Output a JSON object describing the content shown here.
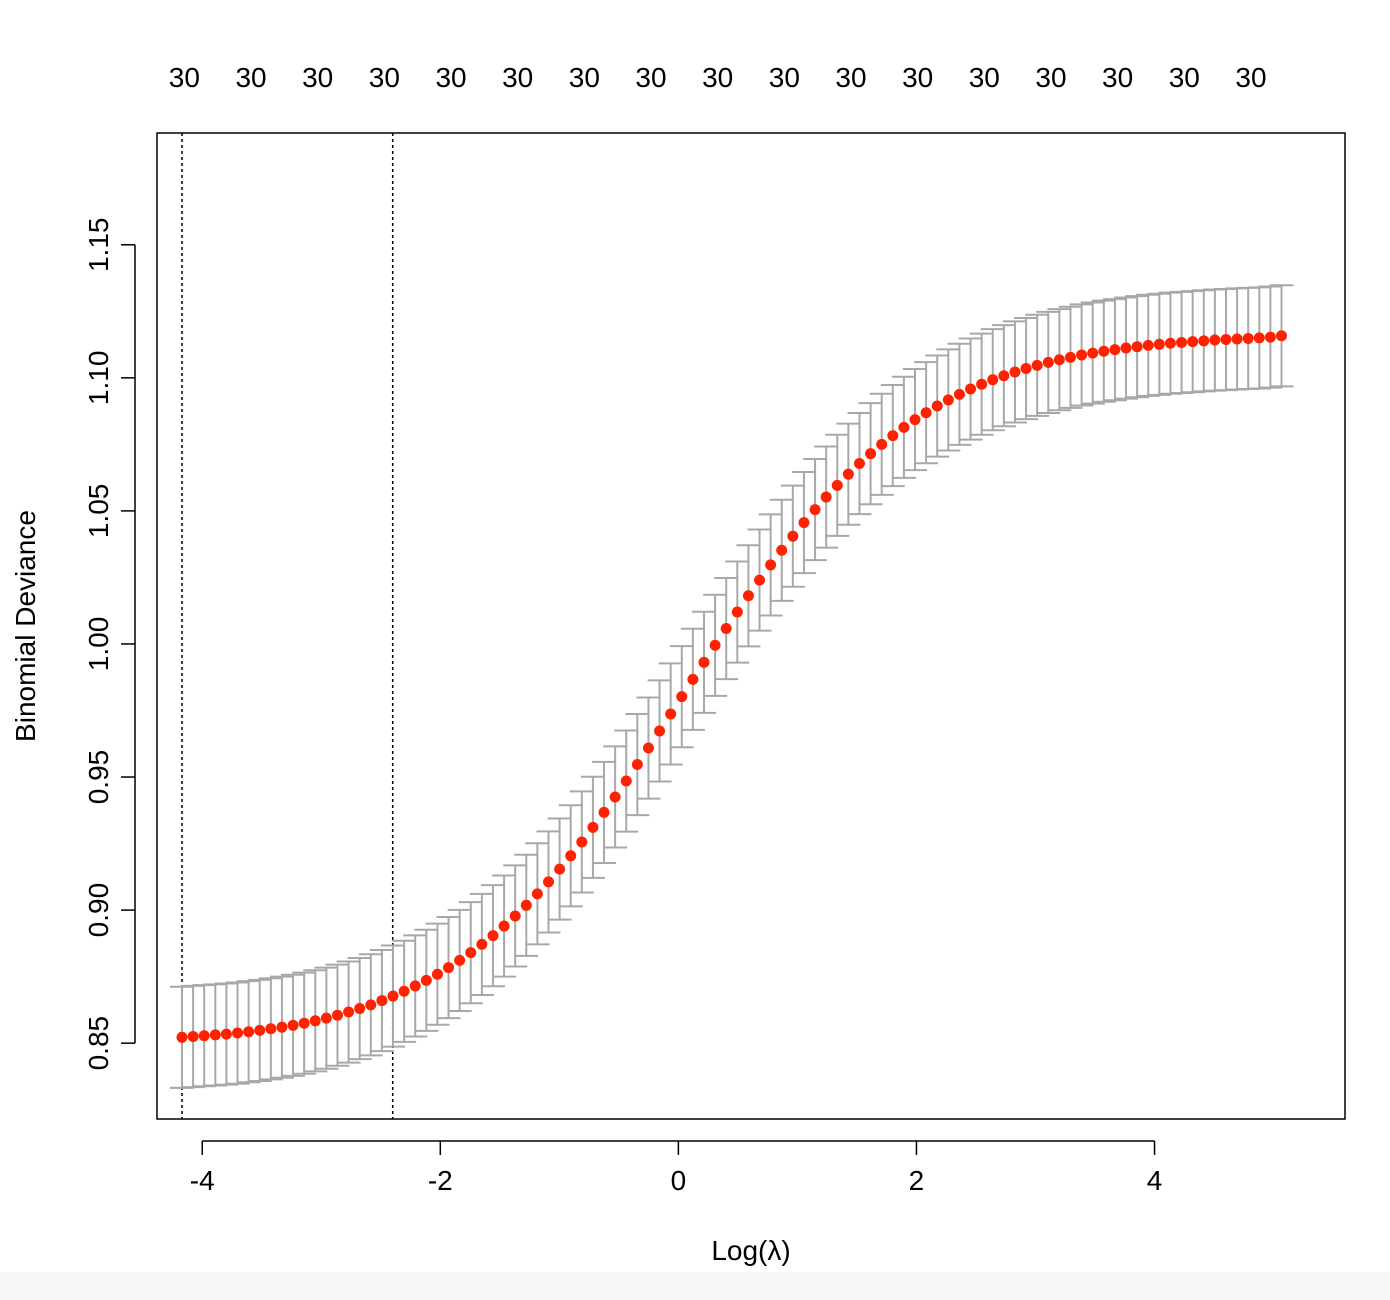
{
  "chart_data": {
    "type": "scatter",
    "xlabel": "Log(λ)",
    "ylabel": "Binomial Deviance",
    "xlim": [
      -4.38,
      5.6
    ],
    "ylim": [
      0.8215,
      1.192
    ],
    "x_ticks": [
      {
        "value": -4,
        "label": "-4"
      },
      {
        "value": -2,
        "label": "-2"
      },
      {
        "value": 0,
        "label": "0"
      },
      {
        "value": 2,
        "label": "2"
      },
      {
        "value": 4,
        "label": "4"
      }
    ],
    "y_ticks": [
      {
        "value": 0.85,
        "label": "0.85"
      },
      {
        "value": 0.9,
        "label": "0.90"
      },
      {
        "value": 0.95,
        "label": "0.95"
      },
      {
        "value": 1.0,
        "label": "1.00"
      },
      {
        "value": 1.05,
        "label": "1.05"
      },
      {
        "value": 1.1,
        "label": "1.10"
      },
      {
        "value": 1.15,
        "label": "1.15"
      }
    ],
    "top_axis": {
      "positions": [
        -4.15,
        -3.59,
        -3.03,
        -2.47,
        -1.91,
        -1.35,
        -0.79,
        -0.23,
        0.33,
        0.89,
        1.45,
        2.01,
        2.57,
        3.13,
        3.69,
        4.25,
        4.81
      ],
      "labels": [
        "30",
        "30",
        "30",
        "30",
        "30",
        "30",
        "30",
        "30",
        "30",
        "30",
        "30",
        "30",
        "30",
        "30",
        "30",
        "30",
        "30"
      ]
    },
    "vlines": [
      -4.17,
      -2.4
    ],
    "series": [
      {
        "marker_color": "#ff2200",
        "errorbar_color": "#a8a8a8",
        "x_start": -4.17,
        "x_step": 0.0933,
        "y": [
          0.8522,
          0.8525,
          0.8528,
          0.8531,
          0.8534,
          0.8538,
          0.8543,
          0.8548,
          0.8554,
          0.856,
          0.8567,
          0.8575,
          0.8584,
          0.8594,
          0.8605,
          0.8617,
          0.863,
          0.8644,
          0.866,
          0.8677,
          0.8695,
          0.8715,
          0.8736,
          0.8759,
          0.8784,
          0.8811,
          0.884,
          0.8871,
          0.8904,
          0.894,
          0.8978,
          0.9018,
          0.9061,
          0.9106,
          0.9154,
          0.9204,
          0.9256,
          0.9311,
          0.9367,
          0.9425,
          0.9485,
          0.9547,
          0.9609,
          0.9673,
          0.9737,
          0.9802,
          0.9867,
          0.9931,
          0.9995,
          1.0058,
          1.012,
          1.0181,
          1.024,
          1.0297,
          1.0352,
          1.0405,
          1.0456,
          1.0505,
          1.0552,
          1.0596,
          1.0638,
          1.0678,
          1.0715,
          1.075,
          1.0783,
          1.0814,
          1.0843,
          1.0869,
          1.0894,
          1.0917,
          1.0938,
          1.0958,
          1.0976,
          1.0993,
          1.1008,
          1.1022,
          1.1035,
          1.1047,
          1.1058,
          1.1068,
          1.1077,
          1.1086,
          1.1093,
          1.11,
          1.1106,
          1.1112,
          1.1117,
          1.1122,
          1.1126,
          1.113,
          1.1133,
          1.1136,
          1.1139,
          1.1142,
          1.1144,
          1.1146,
          1.1148,
          1.115,
          1.1153,
          1.1158
        ],
        "err_half": [
          0.019,
          0.019,
          0.019,
          0.019,
          0.019,
          0.019,
          0.019,
          0.019,
          0.019,
          0.019,
          0.019,
          0.019,
          0.019,
          0.019,
          0.019,
          0.019,
          0.019,
          0.019,
          0.019,
          0.019,
          0.019,
          0.019,
          0.019,
          0.019,
          0.019,
          0.019,
          0.019,
          0.019,
          0.019,
          0.019,
          0.019,
          0.019,
          0.019,
          0.019,
          0.019,
          0.019,
          0.019,
          0.019,
          0.019,
          0.019,
          0.019,
          0.019,
          0.019,
          0.019,
          0.019,
          0.019,
          0.019,
          0.019,
          0.019,
          0.019,
          0.019,
          0.019,
          0.019,
          0.019,
          0.019,
          0.019,
          0.019,
          0.019,
          0.019,
          0.019,
          0.019,
          0.019,
          0.019,
          0.019,
          0.019,
          0.019,
          0.019,
          0.019,
          0.019,
          0.019,
          0.019,
          0.019,
          0.019,
          0.019,
          0.019,
          0.019,
          0.019,
          0.019,
          0.019,
          0.019,
          0.019,
          0.019,
          0.019,
          0.019,
          0.019,
          0.019,
          0.019,
          0.019,
          0.019,
          0.019,
          0.019,
          0.019,
          0.019,
          0.019,
          0.019,
          0.019,
          0.019,
          0.019,
          0.019,
          0.019
        ]
      }
    ]
  }
}
